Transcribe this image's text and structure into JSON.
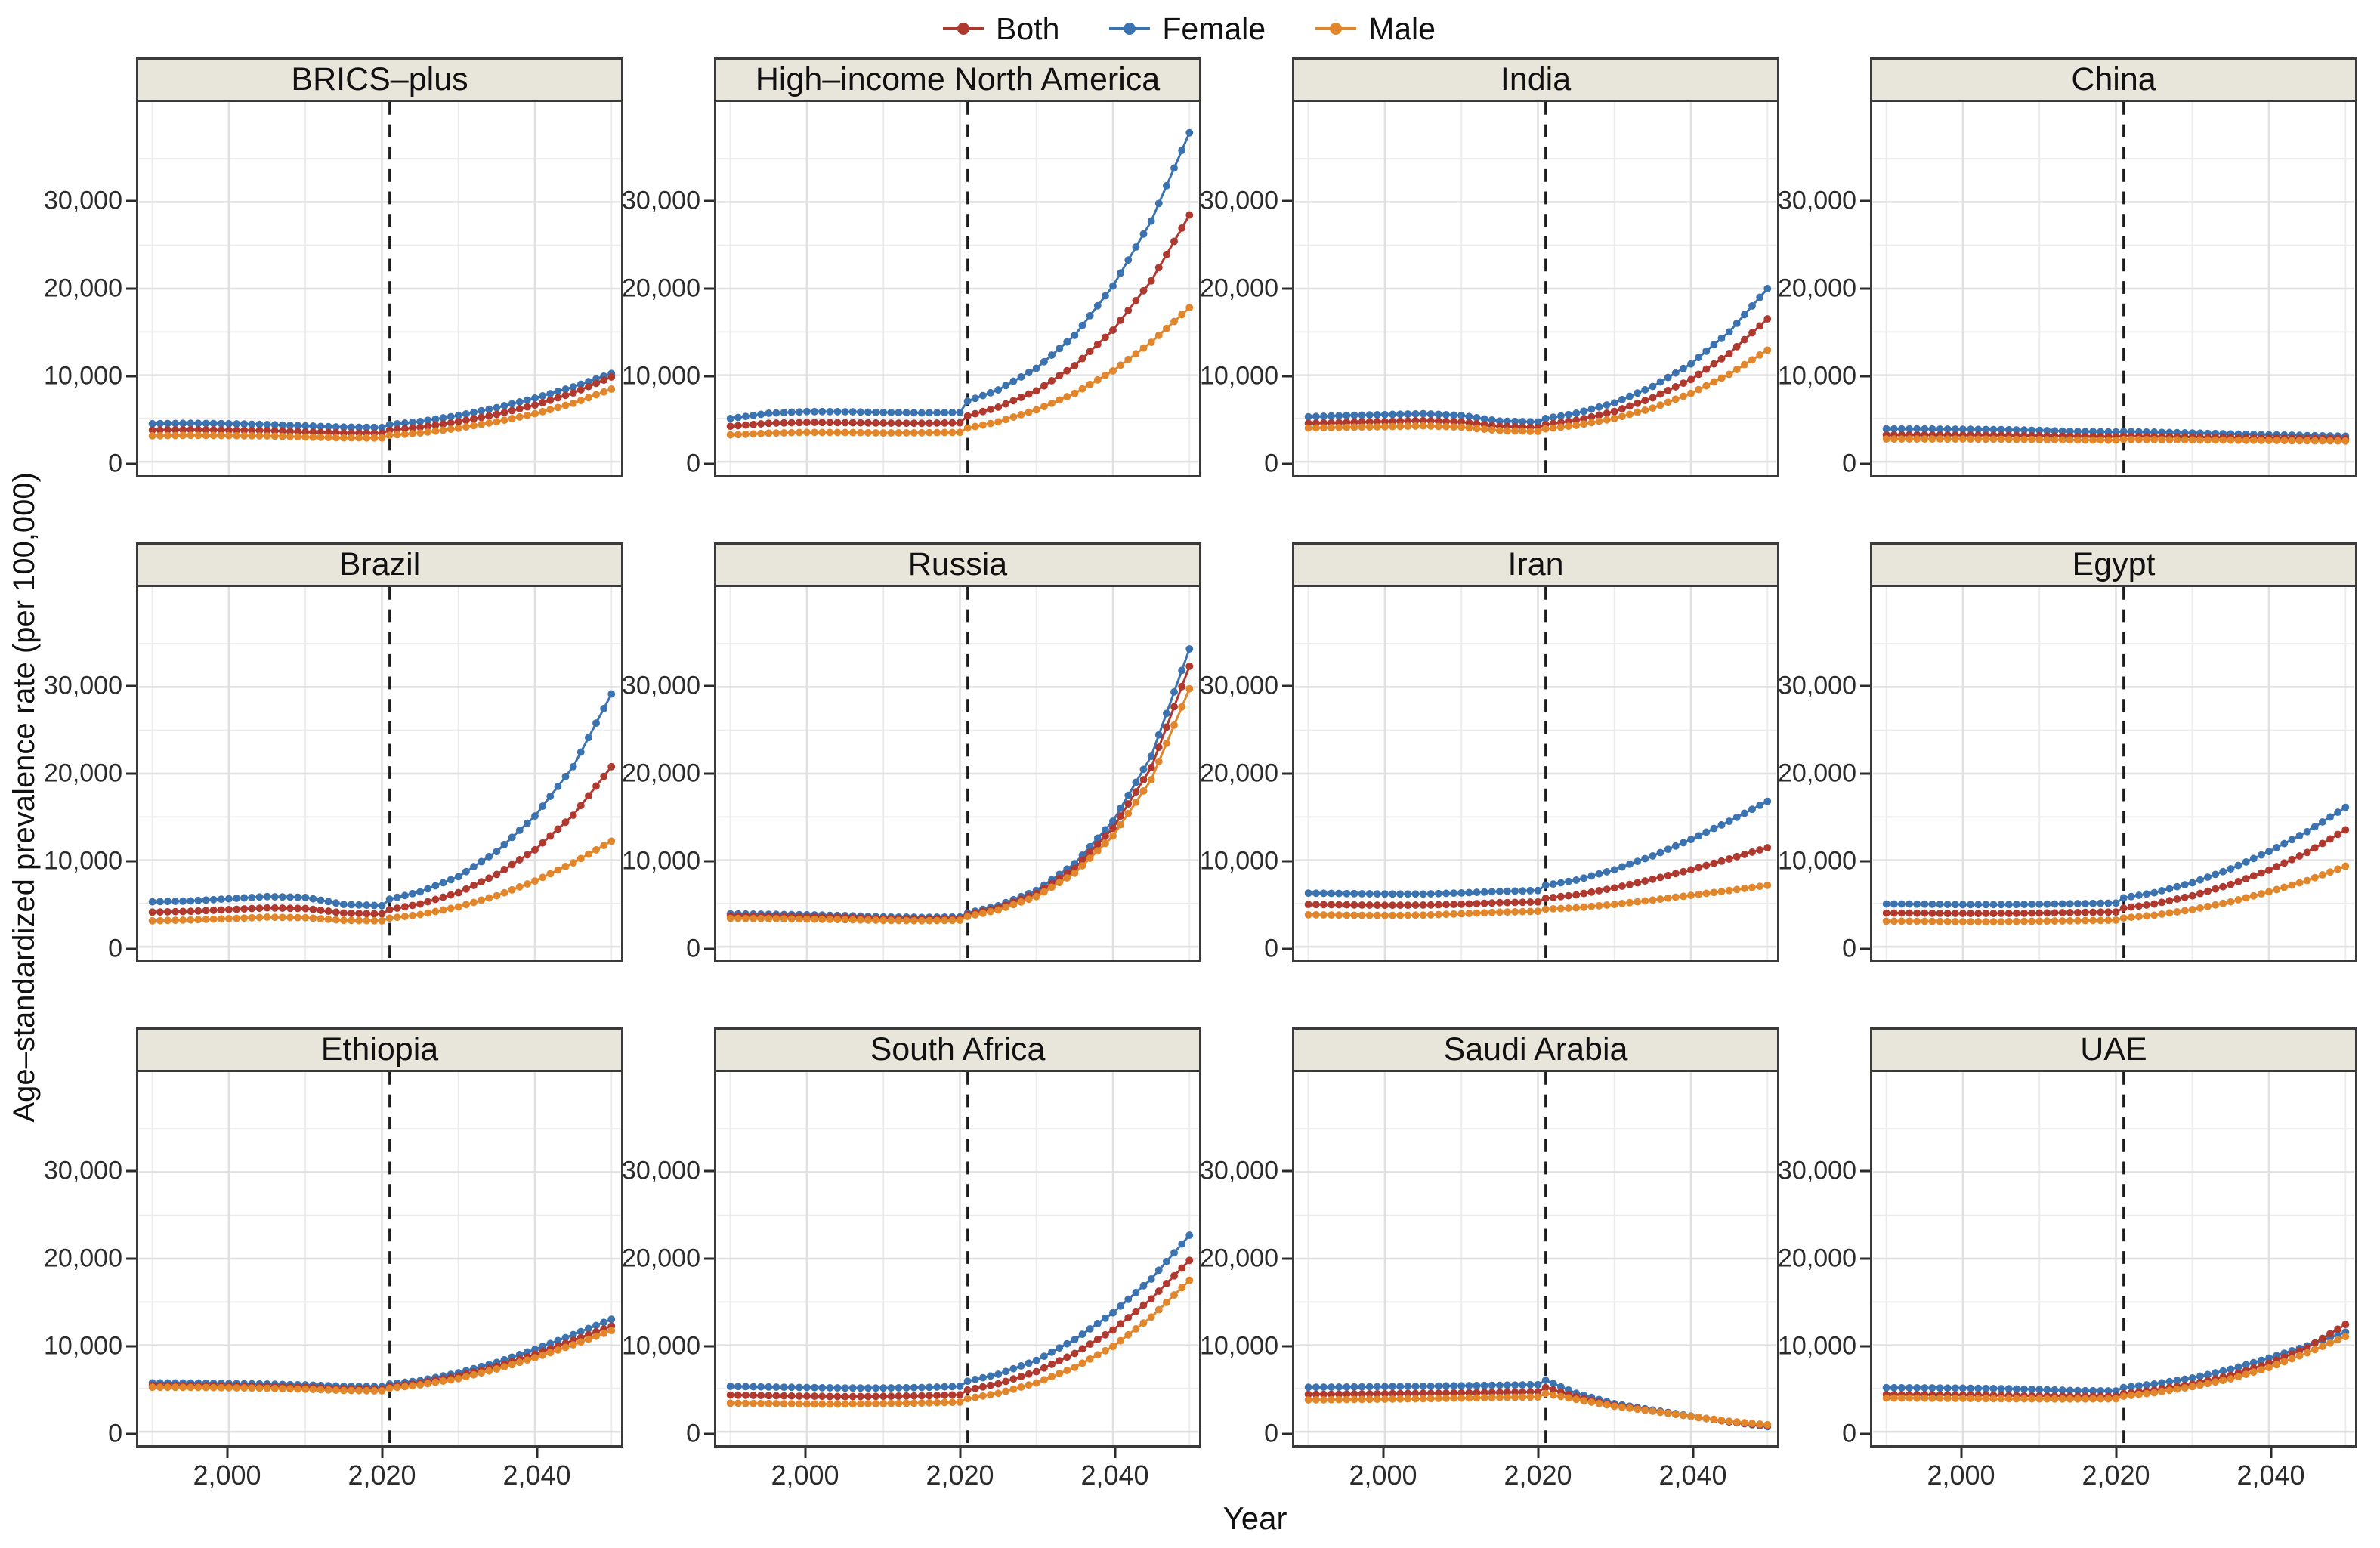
{
  "figure": {
    "y_axis_label": "Age–standardized prevalence rate (per 100,000)",
    "x_axis_label": "Year"
  },
  "chart_data": {
    "type": "line",
    "title": "",
    "xlabel": "Year",
    "ylabel": "Age–standardized prevalence rate (per 100,000)",
    "x_range": [
      1990,
      2050
    ],
    "ylim": [
      0,
      40000
    ],
    "point_step_years": 1,
    "dashed_vline_year": 2021,
    "grid": true,
    "legend_position": "top",
    "y_ticks": [
      {
        "value": 0,
        "label": "0"
      },
      {
        "value": 10000,
        "label": "10,000"
      },
      {
        "value": 20000,
        "label": "20,000"
      },
      {
        "value": 30000,
        "label": "30,000"
      }
    ],
    "y_minor_gridlines": [
      5000,
      15000,
      25000,
      35000
    ],
    "x_ticks": [
      {
        "value": 2000,
        "label": "2,000"
      },
      {
        "value": 2020,
        "label": "2,020"
      },
      {
        "value": 2040,
        "label": "2,040"
      }
    ],
    "x_minor_gridlines": [
      1990,
      2010,
      2030,
      2050
    ],
    "series_meta": [
      {
        "name": "Both",
        "key": "both",
        "color": "#b0392f"
      },
      {
        "name": "Female",
        "key": "female",
        "color": "#3b72b0"
      },
      {
        "name": "Male",
        "key": "male",
        "color": "#e2862c"
      }
    ],
    "x_anchor_years": [
      1990,
      1995,
      2000,
      2005,
      2010,
      2015,
      2020,
      2021,
      2025,
      2030,
      2035,
      2040,
      2045,
      2050
    ],
    "facets": [
      {
        "title": "BRICS–plus",
        "series": [
          [
            3650,
            3700,
            3650,
            3600,
            3450,
            3330,
            3300,
            3650,
            3980,
            4620,
            5470,
            6550,
            7950,
            9800
          ],
          [
            4400,
            4450,
            4400,
            4300,
            4150,
            4000,
            3950,
            4300,
            4650,
            5350,
            6250,
            7350,
            8650,
            10200
          ],
          [
            3000,
            3050,
            3020,
            2980,
            2860,
            2760,
            2750,
            3050,
            3320,
            3880,
            4620,
            5550,
            6750,
            8400
          ]
        ]
      },
      {
        "title": "High–income North America",
        "series": [
          [
            4100,
            4450,
            4550,
            4520,
            4470,
            4450,
            4500,
            5300,
            6300,
            8200,
            11100,
            15200,
            20900,
            28500
          ],
          [
            5000,
            5600,
            5800,
            5780,
            5700,
            5650,
            5700,
            7000,
            8300,
            10800,
            14600,
            20300,
            27800,
            38000
          ],
          [
            3100,
            3300,
            3400,
            3380,
            3330,
            3350,
            3400,
            3900,
            4600,
            6000,
            7900,
            10500,
            13800,
            17800
          ]
        ]
      },
      {
        "title": "India",
        "series": [
          [
            4450,
            4550,
            4650,
            4750,
            4600,
            4100,
            3950,
            4300,
            4800,
            5800,
            7400,
            9500,
            12500,
            16500
          ],
          [
            5200,
            5350,
            5450,
            5550,
            5350,
            4700,
            4600,
            5000,
            5600,
            6800,
            8700,
            11300,
            15000,
            20000
          ],
          [
            3900,
            3980,
            4050,
            4150,
            4000,
            3600,
            3500,
            3800,
            4200,
            5000,
            6200,
            7900,
            10100,
            12900
          ]
        ]
      },
      {
        "title": "China",
        "series": [
          [
            3100,
            3100,
            3080,
            3050,
            3000,
            2930,
            2900,
            2960,
            2910,
            2850,
            2800,
            2740,
            2700,
            2650
          ],
          [
            3800,
            3790,
            3760,
            3720,
            3620,
            3500,
            3450,
            3500,
            3420,
            3320,
            3220,
            3120,
            3030,
            2950
          ],
          [
            2620,
            2630,
            2620,
            2600,
            2560,
            2510,
            2490,
            2570,
            2550,
            2520,
            2490,
            2460,
            2430,
            2400
          ]
        ]
      },
      {
        "title": "Brazil",
        "series": [
          [
            4000,
            4100,
            4300,
            4500,
            4420,
            3900,
            3800,
            4300,
            4950,
            6250,
            8350,
            11200,
            15200,
            20800
          ],
          [
            5200,
            5300,
            5550,
            5800,
            5700,
            4900,
            4750,
            5500,
            6350,
            8100,
            11000,
            15100,
            20800,
            29200
          ],
          [
            3000,
            3100,
            3250,
            3420,
            3360,
            3050,
            3000,
            3300,
            3720,
            4620,
            5900,
            7600,
            9700,
            12200
          ]
        ]
      },
      {
        "title": "Russia",
        "series": [
          [
            3550,
            3520,
            3460,
            3380,
            3260,
            3210,
            3260,
            3700,
            4500,
            6150,
            9050,
            13700,
            20700,
            32400
          ],
          [
            3800,
            3760,
            3700,
            3600,
            3450,
            3400,
            3450,
            3900,
            4750,
            6500,
            9600,
            14500,
            22000,
            34400
          ],
          [
            3280,
            3250,
            3200,
            3130,
            3050,
            3010,
            3060,
            3500,
            4250,
            5800,
            8500,
            12800,
            19300,
            29800
          ]
        ]
      },
      {
        "title": "Iran",
        "series": [
          [
            4900,
            4850,
            4800,
            4820,
            4920,
            5100,
            5180,
            5600,
            6000,
            6800,
            7800,
            8900,
            10150,
            11450
          ],
          [
            6200,
            6150,
            6100,
            6100,
            6220,
            6400,
            6500,
            7100,
            7700,
            8900,
            10500,
            12400,
            14500,
            16800
          ],
          [
            3700,
            3650,
            3620,
            3660,
            3820,
            4000,
            4100,
            4350,
            4500,
            4900,
            5400,
            5950,
            6500,
            7100
          ]
        ]
      },
      {
        "title": "Egypt",
        "series": [
          [
            3900,
            3890,
            3850,
            3850,
            3900,
            3960,
            4020,
            4470,
            4950,
            5900,
            7200,
            8850,
            10900,
            13500
          ],
          [
            4950,
            4930,
            4880,
            4880,
            4920,
            4980,
            5050,
            5650,
            6250,
            7400,
            9000,
            11000,
            13300,
            16100
          ],
          [
            2950,
            2940,
            2900,
            2900,
            2950,
            3010,
            3070,
            3320,
            3650,
            4300,
            5200,
            6350,
            7650,
            9300
          ]
        ]
      },
      {
        "title": "Ethiopia",
        "series": [
          [
            5350,
            5340,
            5290,
            5230,
            5130,
            4970,
            4930,
            5230,
            5620,
            6450,
            7550,
            8950,
            10550,
            12200
          ],
          [
            5650,
            5640,
            5580,
            5520,
            5420,
            5260,
            5220,
            5520,
            5920,
            6820,
            8020,
            9520,
            11220,
            13000
          ],
          [
            5150,
            5140,
            5090,
            5030,
            4930,
            4780,
            4730,
            5030,
            5420,
            6150,
            7250,
            8550,
            10050,
            11700
          ]
        ]
      },
      {
        "title": "South Africa",
        "series": [
          [
            4250,
            4180,
            4120,
            4070,
            4100,
            4160,
            4280,
            4830,
            5550,
            6950,
            9050,
            11750,
            15350,
            19800
          ],
          [
            5250,
            5180,
            5120,
            5060,
            5060,
            5120,
            5250,
            5850,
            6650,
            8250,
            10650,
            13750,
            17650,
            22700
          ],
          [
            3300,
            3260,
            3210,
            3210,
            3260,
            3320,
            3430,
            3830,
            4450,
            5650,
            7450,
            9850,
            13250,
            17500
          ]
        ]
      },
      {
        "title": "Saudi Arabia",
        "series": [
          [
            4320,
            4350,
            4400,
            4450,
            4500,
            4560,
            4620,
            5120,
            4050,
            3050,
            2420,
            1780,
            1160,
            700
          ],
          [
            5150,
            5180,
            5220,
            5270,
            5320,
            5380,
            5450,
            5950,
            4450,
            3250,
            2520,
            1820,
            1150,
            600
          ],
          [
            3680,
            3720,
            3770,
            3820,
            3900,
            3960,
            4020,
            4420,
            3750,
            2950,
            2380,
            1780,
            1220,
            820
          ]
        ]
      },
      {
        "title": "UAE",
        "series": [
          [
            4300,
            4290,
            4250,
            4200,
            4160,
            4110,
            4120,
            4420,
            4820,
            5520,
            6520,
            7920,
            9720,
            12400
          ],
          [
            5100,
            5080,
            5040,
            4990,
            4890,
            4760,
            4720,
            5120,
            5520,
            6220,
            7220,
            8520,
            9920,
            11500
          ],
          [
            3900,
            3890,
            3850,
            3820,
            3800,
            3790,
            3810,
            4110,
            4510,
            5220,
            6120,
            7420,
            9120,
            11000
          ]
        ]
      }
    ]
  }
}
